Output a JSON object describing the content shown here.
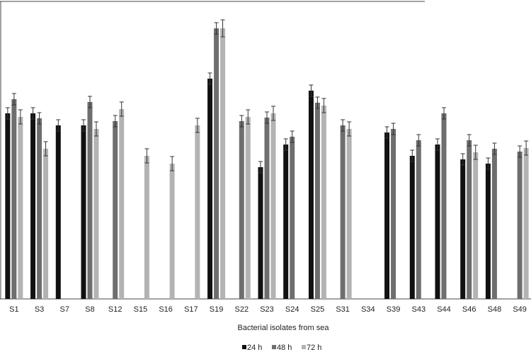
{
  "chart_data": {
    "type": "bar",
    "x_label": "Bacterial isolates from sea",
    "categories": [
      "S1",
      "S3",
      "S7",
      "S8",
      "S12",
      "S15",
      "S16",
      "S17",
      "S19",
      "S22",
      "S23",
      "S24",
      "S25",
      "S31",
      "S34",
      "S39",
      "S43",
      "S44",
      "S46",
      "S48",
      "S49"
    ],
    "ylim": [
      0,
      420
    ],
    "series": [
      {
        "name": "24 h",
        "color": "#111111",
        "values": [
          262,
          262,
          245,
          245,
          null,
          null,
          null,
          null,
          311,
          null,
          186,
          218,
          294,
          null,
          null,
          235,
          202,
          218,
          197,
          191,
          null
        ],
        "errors": [
          8,
          8,
          8,
          8,
          null,
          null,
          null,
          null,
          8,
          null,
          8,
          8,
          8,
          null,
          null,
          8,
          8,
          8,
          8,
          8,
          null
        ]
      },
      {
        "name": "48 h",
        "color": "#6e6e6e",
        "values": [
          282,
          255,
          null,
          278,
          251,
          null,
          null,
          null,
          382,
          251,
          256,
          229,
          277,
          245,
          null,
          240,
          224,
          262,
          224,
          212,
          208
        ],
        "errors": [
          8,
          8,
          null,
          8,
          8,
          null,
          null,
          null,
          8,
          8,
          8,
          8,
          8,
          8,
          null,
          8,
          8,
          8,
          8,
          8,
          8
        ]
      },
      {
        "name": "72 h",
        "color": "#b3b3b3",
        "values": [
          257,
          212,
          null,
          240,
          268,
          202,
          191,
          245,
          382,
          257,
          262,
          null,
          273,
          240,
          null,
          null,
          null,
          null,
          207,
          null,
          213
        ],
        "errors": [
          10,
          10,
          null,
          10,
          10,
          10,
          10,
          10,
          12,
          10,
          10,
          null,
          10,
          10,
          null,
          null,
          null,
          null,
          10,
          null,
          10
        ]
      }
    ]
  }
}
